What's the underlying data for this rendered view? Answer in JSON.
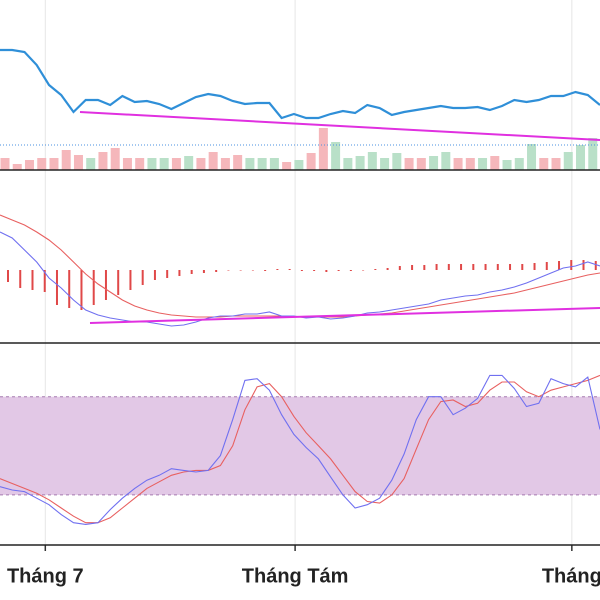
{
  "chart_data": [
    {
      "type": "line",
      "x": [
        0,
        1,
        2,
        3,
        4,
        5,
        6,
        7,
        8,
        9,
        10,
        11,
        12,
        13,
        14,
        15,
        16,
        17,
        18,
        19,
        20,
        21,
        22,
        23,
        24,
        25,
        26,
        27,
        28,
        29,
        30,
        31,
        32,
        33,
        34,
        35,
        36,
        37,
        38,
        39,
        40,
        41,
        42,
        43,
        44,
        45,
        46,
        47,
        48,
        49
      ],
      "xlim": [
        0,
        49
      ],
      "ylim": [
        0,
        170
      ],
      "y2lim": [
        0,
        170
      ],
      "series": [
        {
          "type": "line",
          "color": "#2f8fd8",
          "values": [
            120,
            120,
            118,
            105,
            85,
            75,
            58,
            70,
            70,
            65,
            74,
            68,
            69,
            66,
            61,
            67,
            73,
            76,
            74,
            69,
            66,
            67,
            67,
            52,
            56,
            52,
            52,
            56,
            59,
            57,
            65,
            62,
            55,
            58,
            60,
            62,
            64,
            62,
            62,
            63,
            60,
            64,
            70,
            68,
            70,
            74,
            74,
            78,
            75,
            65
          ]
        },
        {
          "type": "bar",
          "axis": "y2",
          "values": [
            12,
            6,
            10,
            12,
            12,
            20,
            15,
            12,
            18,
            22,
            12,
            12,
            12,
            12,
            12,
            14,
            12,
            18,
            12,
            15,
            12,
            12,
            12,
            8,
            10,
            17,
            42,
            28,
            12,
            14,
            18,
            12,
            17,
            12,
            12,
            14,
            18,
            12,
            12,
            12,
            14,
            10,
            12,
            26,
            12,
            12,
            18,
            25,
            32,
            30
          ],
          "colors": [
            "#f5b7bb",
            "#f5b7bb",
            "#f5b7bb",
            "#f5b7bb",
            "#f5b7bb",
            "#f5b7bb",
            "#f5b7bb",
            "#b9e0c8",
            "#f5b7bb",
            "#f5b7bb",
            "#f5b7bb",
            "#f5b7bb",
            "#b9e0c8",
            "#b9e0c8",
            "#f5b7bb",
            "#b9e0c8",
            "#f5b7bb",
            "#f5b7bb",
            "#f5b7bb",
            "#f5b7bb",
            "#b9e0c8",
            "#b9e0c8",
            "#b9e0c8",
            "#f5b7bb",
            "#b9e0c8",
            "#f5b7bb",
            "#f5b7bb",
            "#b9e0c8",
            "#b9e0c8",
            "#b9e0c8",
            "#b9e0c8",
            "#b9e0c8",
            "#b9e0c8",
            "#f5b7bb",
            "#f5b7bb",
            "#b9e0c8",
            "#b9e0c8",
            "#f5b7bb",
            "#f5b7bb",
            "#b9e0c8",
            "#f5b7bb",
            "#b9e0c8",
            "#b9e0c8",
            "#b9e0c8",
            "#f5b7bb",
            "#f5b7bb",
            "#b9e0c8",
            "#b9e0c8",
            "#b9e0c8",
            "#f5b7bb"
          ]
        }
      ]
    },
    {
      "type": "line",
      "x": [
        0,
        1,
        2,
        3,
        4,
        5,
        6,
        7,
        8,
        9,
        10,
        11,
        12,
        13,
        14,
        15,
        16,
        17,
        18,
        19,
        20,
        21,
        22,
        23,
        24,
        25,
        26,
        27,
        28,
        29,
        30,
        31,
        32,
        33,
        34,
        35,
        36,
        37,
        38,
        39,
        40,
        41,
        42,
        43,
        44,
        45,
        46,
        47,
        48,
        49
      ],
      "xlim": [
        0,
        49
      ],
      "ylim": [
        -75,
        100
      ],
      "series": [
        {
          "type": "bar",
          "color": "#e04848",
          "values": [
            -12,
            -18,
            -20,
            -22,
            -35,
            -38,
            -40,
            -35,
            -30,
            -25,
            -20,
            -15,
            -10,
            -8,
            -6,
            -4,
            -3,
            -2,
            0,
            0,
            0,
            -1,
            1,
            1,
            -1,
            -1,
            -2,
            -1,
            -1,
            0,
            1,
            2,
            4,
            5,
            5,
            6,
            6,
            6,
            6,
            6,
            6,
            6,
            6,
            7,
            8,
            9,
            10,
            10,
            9,
            8
          ]
        },
        {
          "type": "line",
          "color": "#e86060",
          "values": [
            55,
            50,
            45,
            38,
            30,
            20,
            8,
            -4,
            -14,
            -22,
            -30,
            -36,
            -40,
            -43,
            -45,
            -46,
            -47,
            -47,
            -47,
            -46,
            -46,
            -46,
            -46,
            -46,
            -47,
            -47,
            -47,
            -47,
            -47,
            -46,
            -45,
            -44,
            -43,
            -41,
            -39,
            -37,
            -35,
            -33,
            -31,
            -29,
            -27,
            -25,
            -23,
            -20,
            -17,
            -14,
            -11,
            -8,
            -5,
            -3
          ]
        },
        {
          "type": "line",
          "color": "#7070f0",
          "values": [
            38,
            32,
            20,
            8,
            -8,
            -18,
            -30,
            -40,
            -45,
            -48,
            -50,
            -52,
            -52,
            -54,
            -56,
            -55,
            -52,
            -48,
            -46,
            -46,
            -44,
            -44,
            -42,
            -46,
            -46,
            -48,
            -47,
            -49,
            -48,
            -46,
            -43,
            -42,
            -40,
            -38,
            -36,
            -34,
            -30,
            -28,
            -26,
            -25,
            -22,
            -20,
            -17,
            -13,
            -8,
            -3,
            2,
            4,
            8,
            4
          ]
        }
      ]
    },
    {
      "type": "line",
      "x": [
        0,
        1,
        2,
        3,
        4,
        5,
        6,
        7,
        8,
        9,
        10,
        11,
        12,
        13,
        14,
        15,
        16,
        17,
        18,
        19,
        20,
        21,
        22,
        23,
        24,
        25,
        26,
        27,
        28,
        29,
        30,
        31,
        32,
        33,
        34,
        35,
        36,
        37,
        38,
        39,
        40,
        41,
        42,
        43,
        44,
        45,
        46,
        47,
        48,
        49
      ],
      "xlim": [
        0,
        49
      ],
      "ylim": [
        -10.6,
        111.6
      ],
      "bands": [
        20,
        80
      ],
      "xticks": [
        {
          "value": 3.7,
          "label": "Tháng 7"
        },
        {
          "value": 24.1,
          "label": "Tháng Tám"
        },
        {
          "value": 46.7,
          "label": "Tháng"
        }
      ],
      "series": [
        {
          "type": "line",
          "color": "#e86060",
          "values": [
            30,
            27,
            24,
            21,
            17,
            12,
            7,
            3,
            3,
            6,
            12,
            18,
            24,
            28,
            32,
            34,
            35,
            35,
            38,
            50,
            72,
            86,
            88,
            80,
            68,
            58,
            50,
            42,
            32,
            22,
            16,
            15,
            20,
            30,
            48,
            66,
            77,
            78,
            74,
            76,
            84,
            89,
            89,
            83,
            80,
            84,
            86,
            88,
            90,
            93
          ]
        },
        {
          "type": "line",
          "color": "#7070f0",
          "values": [
            25,
            23,
            22,
            18,
            14,
            8,
            3,
            2,
            3,
            11,
            18,
            24,
            29,
            32,
            36,
            35,
            34,
            35,
            44,
            66,
            90,
            91,
            84,
            69,
            57,
            49,
            42,
            31,
            20,
            12,
            14,
            18,
            29,
            45,
            66,
            80,
            80,
            69,
            73,
            79,
            93,
            93,
            85,
            74,
            76,
            91,
            88,
            86,
            92,
            60
          ]
        }
      ]
    }
  ]
}
